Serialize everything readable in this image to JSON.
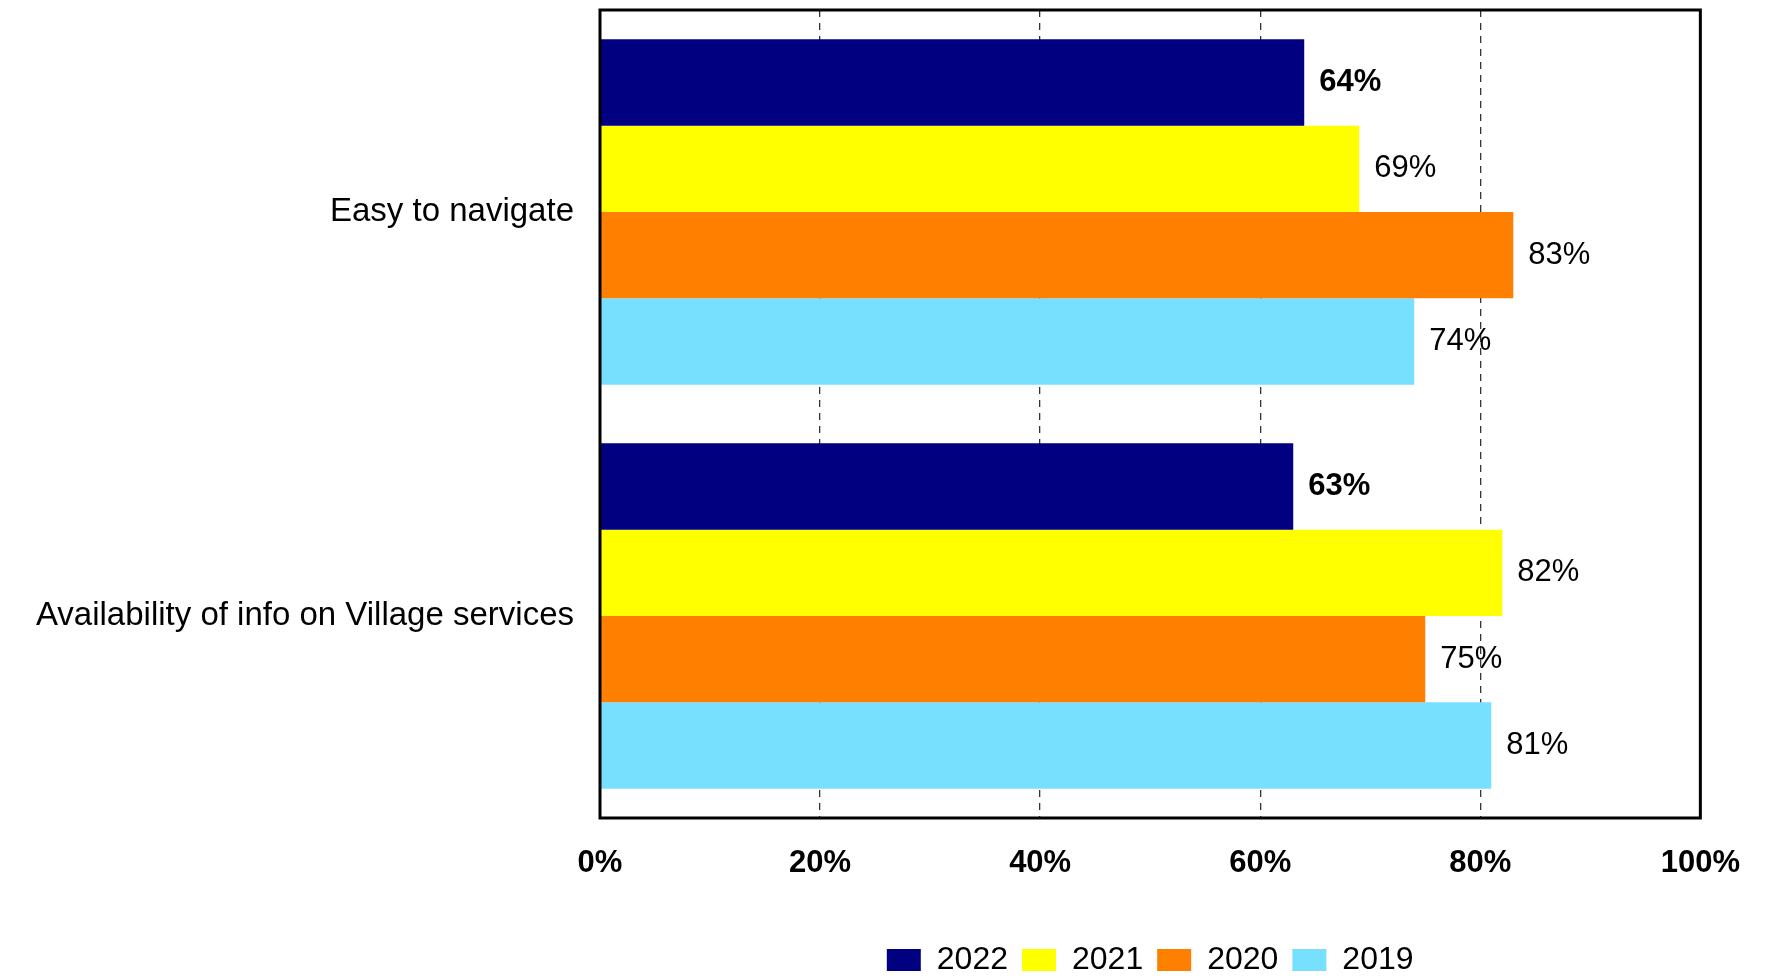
{
  "chart_data": {
    "type": "bar",
    "orientation": "horizontal",
    "categories": [
      "Easy to navigate",
      "Availability of info on Village services"
    ],
    "series": [
      {
        "name": "2022",
        "color": "#000080",
        "values": [
          64,
          63
        ],
        "value_labels": [
          "64%",
          "63%"
        ]
      },
      {
        "name": "2021",
        "color": "#ffff00",
        "values": [
          69,
          82
        ],
        "value_labels": [
          "69%",
          "82%"
        ]
      },
      {
        "name": "2020",
        "color": "#ff8000",
        "values": [
          83,
          75
        ],
        "value_labels": [
          "83%",
          "75%"
        ]
      },
      {
        "name": "2019",
        "color": "#77dfff",
        "values": [
          74,
          81
        ],
        "value_labels": [
          "74%",
          "81%"
        ]
      }
    ],
    "xlim": [
      0,
      100
    ],
    "xticks": [
      {
        "value": 0,
        "label": "0%"
      },
      {
        "value": 20,
        "label": "20%"
      },
      {
        "value": 40,
        "label": "40%"
      },
      {
        "value": 60,
        "label": "60%"
      },
      {
        "value": 80,
        "label": "80%"
      },
      {
        "value": 100,
        "label": "100%"
      }
    ],
    "grid": "x",
    "legend": "bottom"
  }
}
